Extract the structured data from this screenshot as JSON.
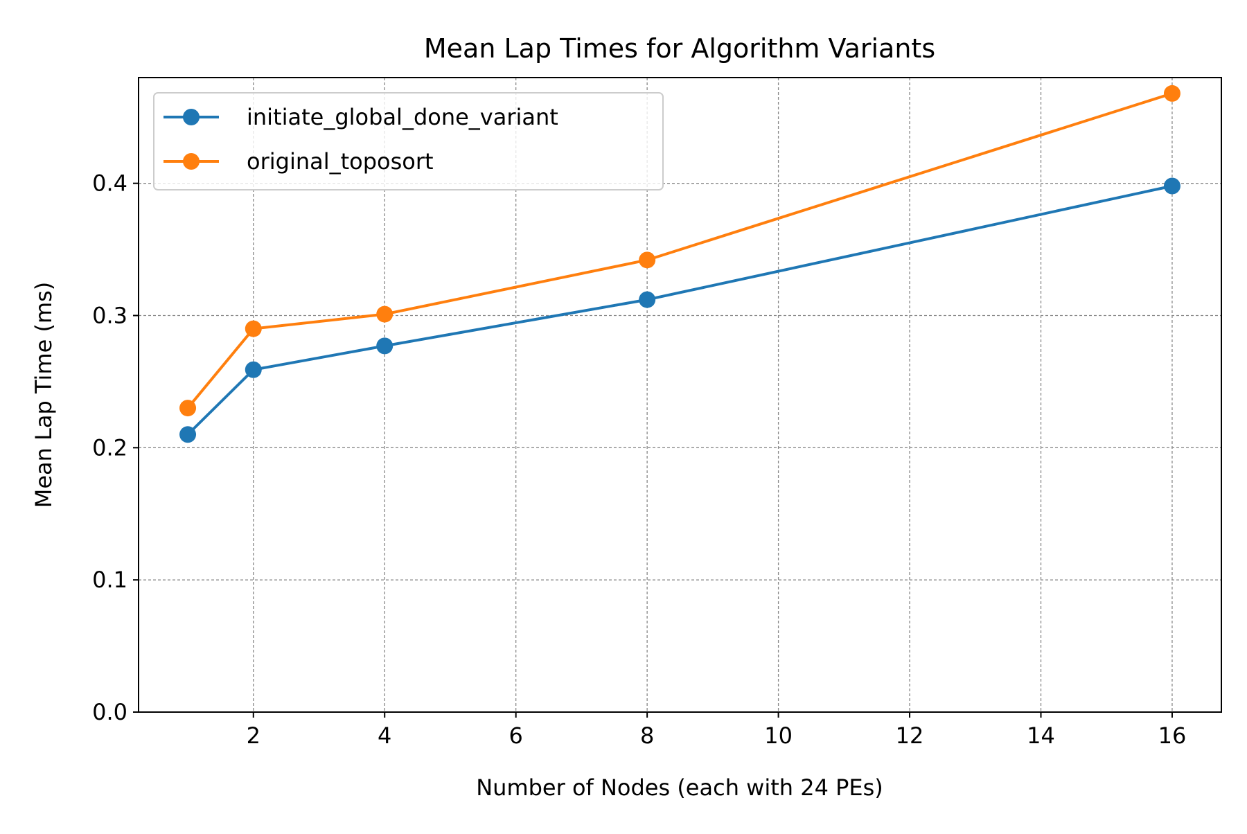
{
  "chart_data": {
    "type": "line",
    "title": "Mean Lap Times for Algorithm Variants",
    "xlabel": "Number of Nodes (each with 24 PEs)",
    "ylabel": "Mean Lap Time (ms)",
    "x": [
      1,
      2,
      4,
      8,
      16
    ],
    "xticks": [
      2,
      4,
      6,
      8,
      10,
      12,
      14,
      16
    ],
    "yticks": [
      0.0,
      0.1,
      0.2,
      0.3,
      0.4
    ],
    "xtick_labels": [
      "2",
      "4",
      "6",
      "8",
      "10",
      "12",
      "14",
      "16"
    ],
    "ytick_labels": [
      "0.0",
      "0.1",
      "0.2",
      "0.3",
      "0.4"
    ],
    "xlim": [
      0.25,
      16.75
    ],
    "ylim": [
      0.0,
      0.48
    ],
    "grid": true,
    "legend_position": "top-left",
    "series": [
      {
        "name": "initiate_global_done_variant",
        "color": "#1f77b4",
        "values": [
          0.21,
          0.259,
          0.277,
          0.312,
          0.398
        ]
      },
      {
        "name": "original_toposort",
        "color": "#ff7f0e",
        "values": [
          0.23,
          0.29,
          0.301,
          0.342,
          0.468
        ]
      }
    ]
  }
}
